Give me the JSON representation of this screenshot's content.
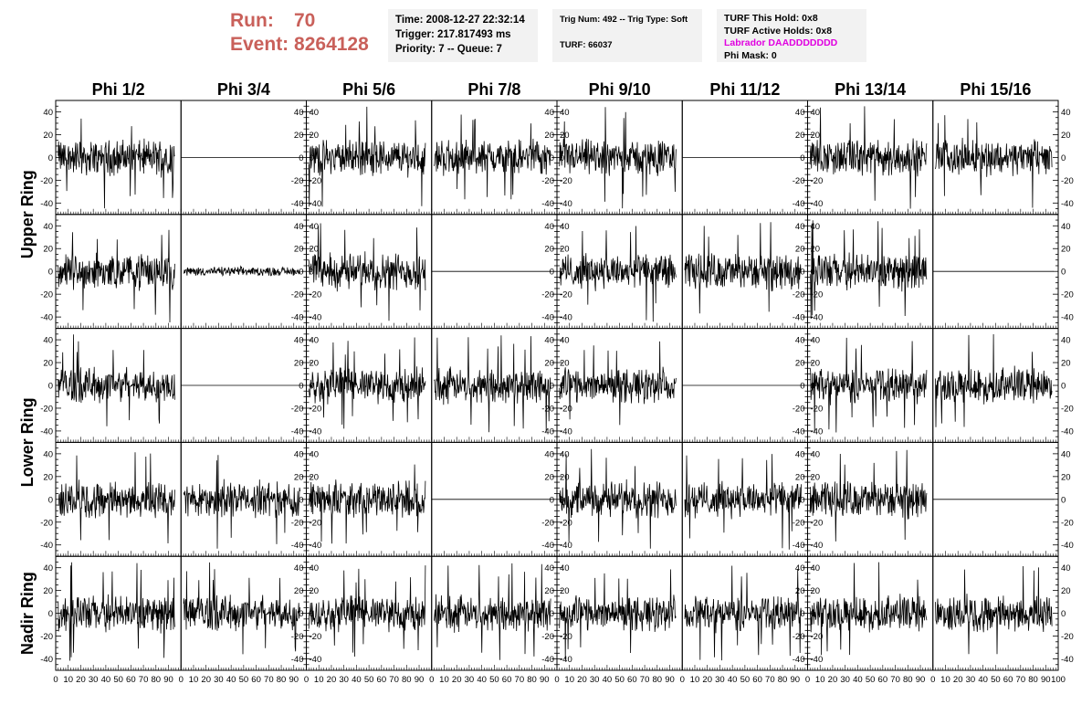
{
  "header": {
    "run_label": "Run:",
    "run_value": "70",
    "event_label": "Event:",
    "event_value": "8264128",
    "time_line": "Time: 2008-12-27 22:32:14",
    "trigger_line": "Trigger: 217.817493 ms",
    "priority_line": "Priority: 7 -- Queue: 7",
    "trig_line": "Trig Num: 492 -- Trig Type: Soft",
    "turf_line": "TURF: 66037",
    "turf_hold_line": "TURF This Hold: 0x8",
    "turf_active_line": "TURF Active Holds: 0x8",
    "labrador_line": "Labrador DAADDDDDDD",
    "phi_mask_line": "Phi Mask: 0",
    "colors": {
      "run_event": "#c9605a",
      "labrador": "#e000e0",
      "box_bg": "#f2f2f2"
    }
  },
  "chart_data": {
    "type": "line",
    "layout": "small-multiples grid, 5 rows x 8 columns of waveform panels",
    "columns": [
      "Phi 1/2",
      "Phi 3/4",
      "Phi 5/6",
      "Phi 7/8",
      "Phi 9/10",
      "Phi 11/12",
      "Phi 13/14",
      "Phi 15/16"
    ],
    "rows": [
      "Upper Ring",
      "Upper Ring",
      "Lower Ring",
      "Lower Ring",
      "Nadir Ring"
    ],
    "row_label_groups": [
      {
        "label": "Upper Ring",
        "rows": [
          0,
          1
        ]
      },
      {
        "label": "Lower Ring",
        "rows": [
          2,
          3
        ]
      },
      {
        "label": "Nadir Ring",
        "rows": [
          4
        ]
      }
    ],
    "xlim": [
      0,
      100
    ],
    "ylim": [
      -50,
      50
    ],
    "x_ticks": [
      0,
      10,
      20,
      30,
      40,
      50,
      60,
      70,
      80,
      90,
      100
    ],
    "x_tick_labels": [
      "0",
      "10",
      "20",
      "30",
      "40",
      "50",
      "60",
      "70",
      "80",
      "90",
      "100"
    ],
    "y_ticks": [
      -40,
      -20,
      0,
      20,
      40
    ],
    "y_tick_labels": [
      "-40",
      "-20",
      "0",
      "20",
      "40"
    ],
    "grid": false,
    "flat_panels": [
      [
        0,
        1
      ],
      [
        0,
        5
      ],
      [
        1,
        3
      ],
      [
        1,
        7
      ],
      [
        2,
        1
      ],
      [
        2,
        5
      ],
      [
        3,
        3
      ],
      [
        3,
        7
      ]
    ],
    "low_amplitude_panels": [
      [
        1,
        1
      ]
    ],
    "waveform_sample_count": 260,
    "waveform_typical_amplitude": 12,
    "waveform_peak_amplitude": 45
  }
}
